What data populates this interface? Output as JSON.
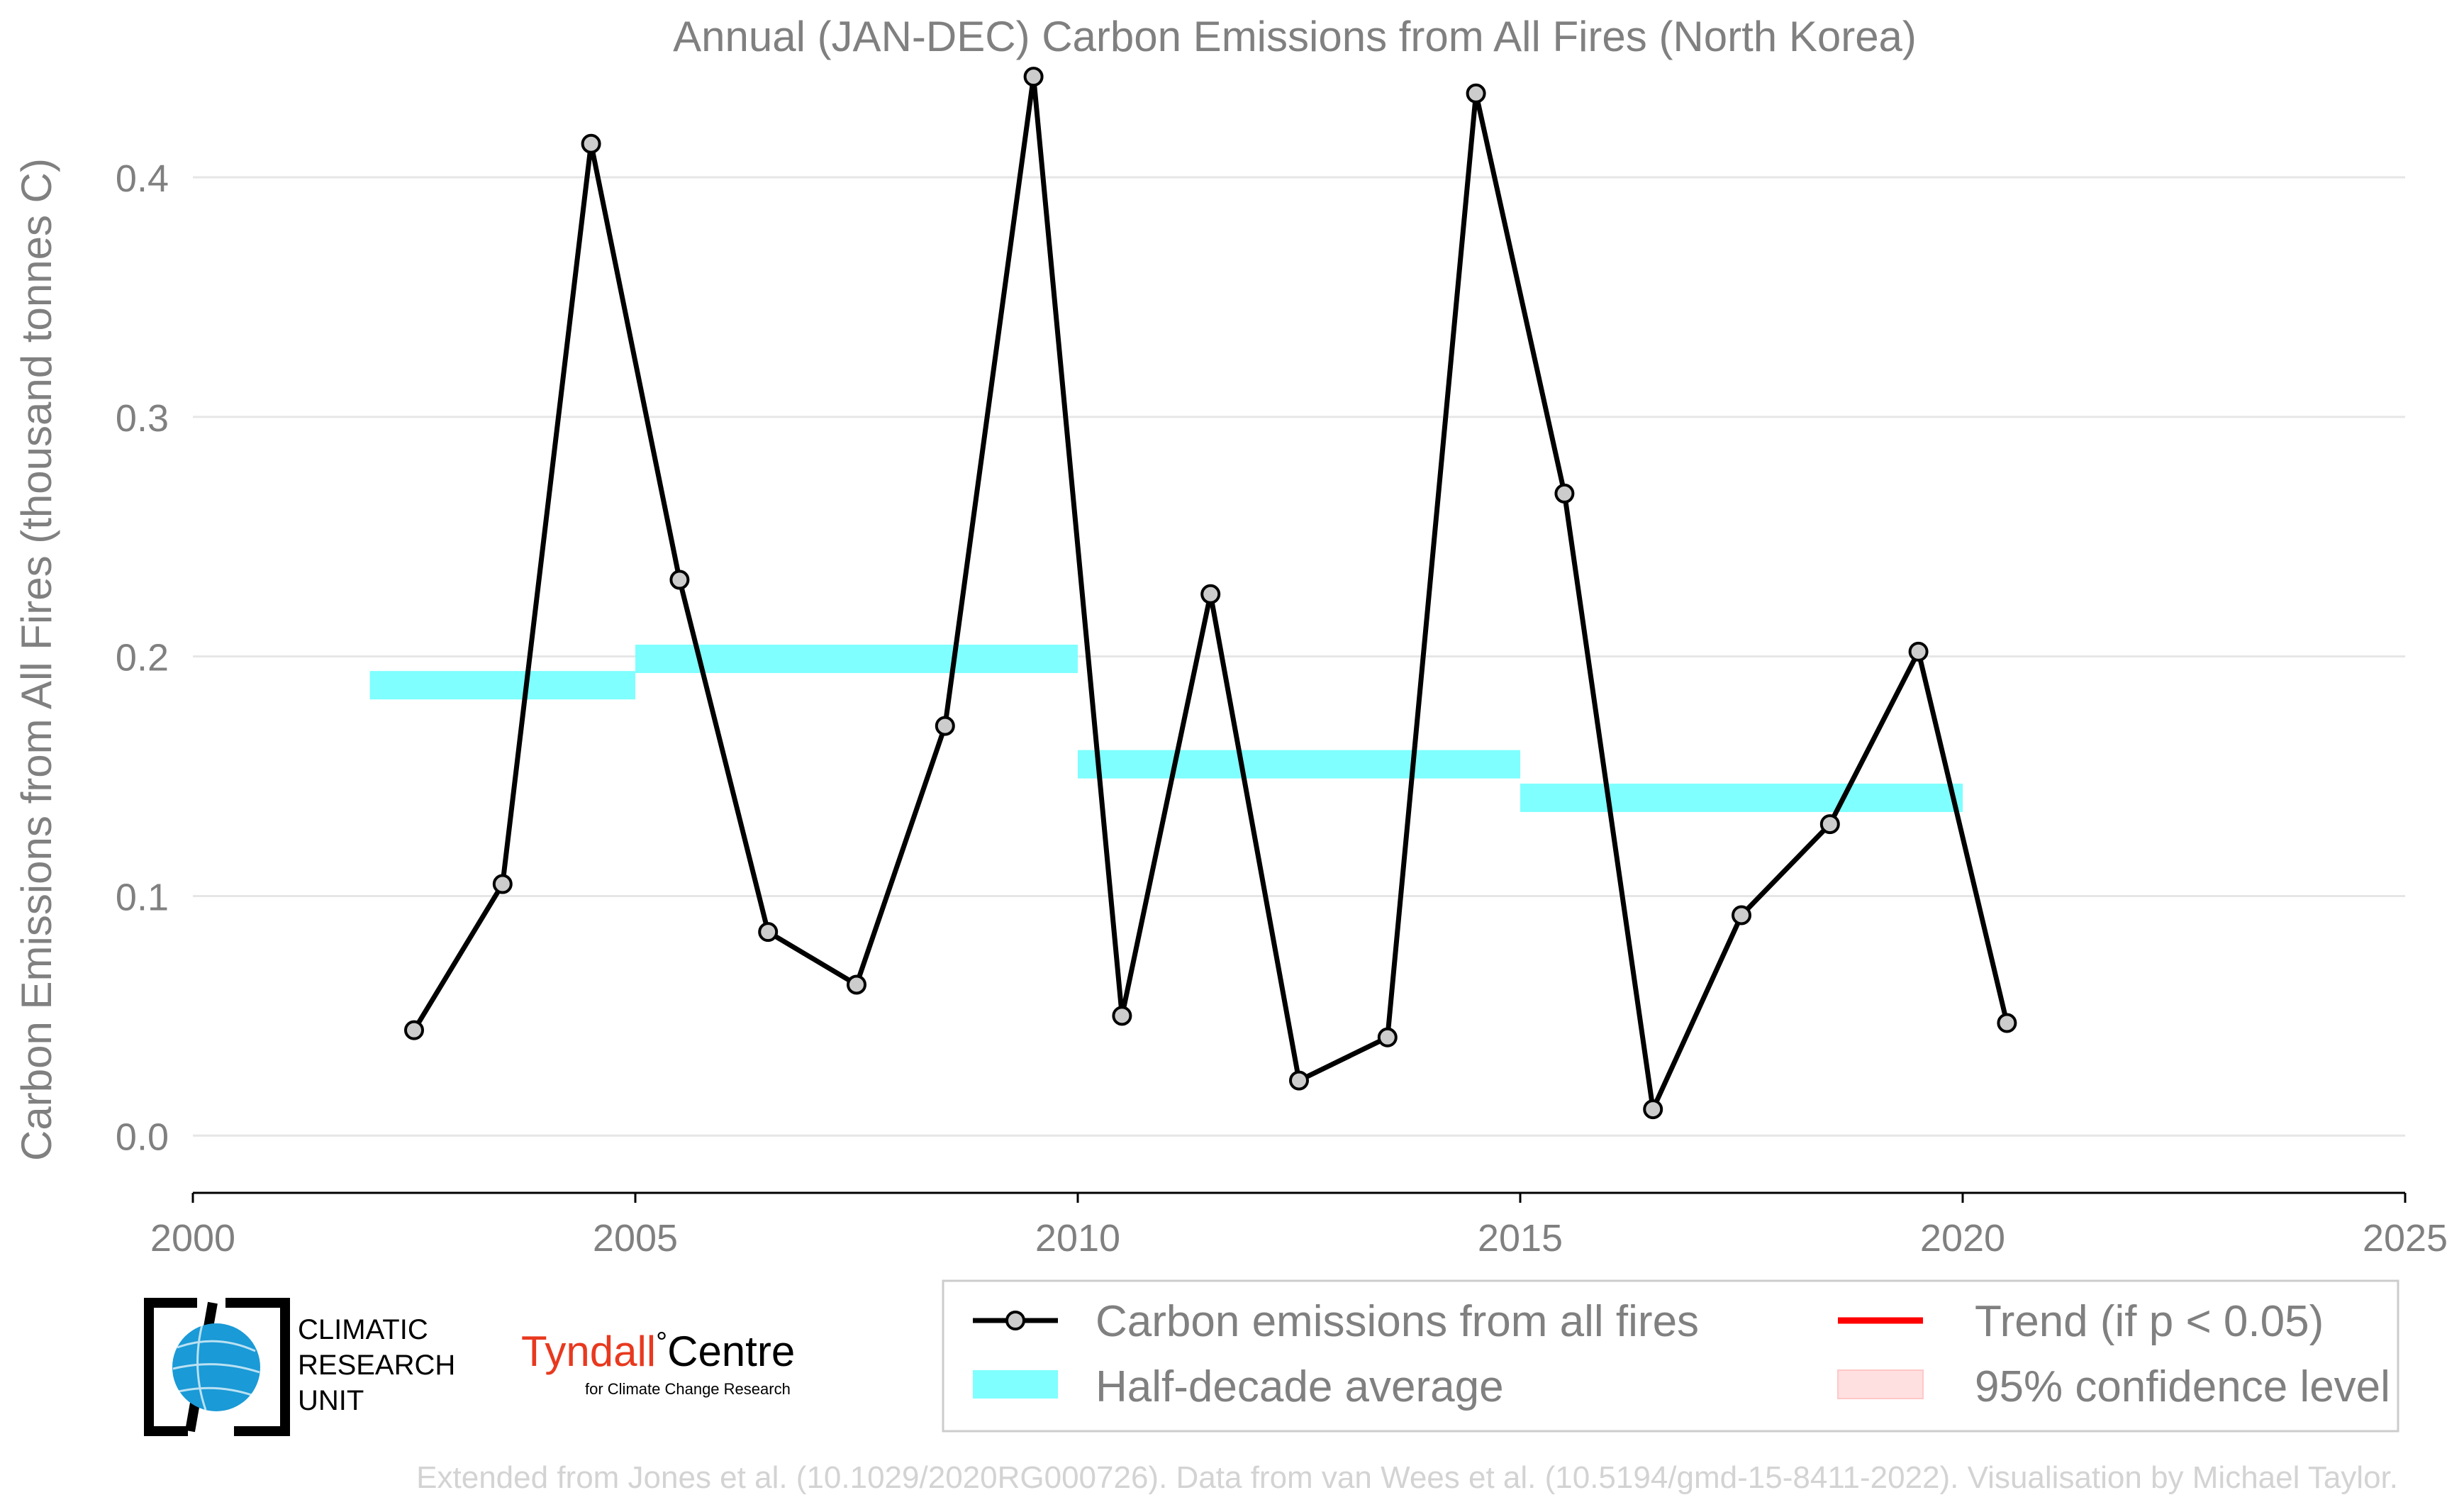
{
  "chart_data": {
    "type": "line",
    "title": "Annual (JAN-DEC) Carbon Emissions from All Fires (North Korea)",
    "xlabel": "",
    "ylabel": "Carbon Emissions from All Fires (thousand tonnes C)",
    "xlim": [
      2000,
      2025
    ],
    "ylim": [
      -0.0239,
      0.445
    ],
    "xticks": [
      2000,
      2005,
      2010,
      2015,
      2020,
      2025
    ],
    "xtick_labels": [
      "2000",
      "2005",
      "2010",
      "2015",
      "2020",
      "2025"
    ],
    "yticks": [
      0.0,
      0.1,
      0.2,
      0.3,
      0.4
    ],
    "ytick_labels": [
      "0.0",
      "0.1",
      "0.2",
      "0.3",
      "0.4"
    ],
    "grid": "horizontal",
    "series": [
      {
        "name": "Carbon emissions from all fires",
        "color": "#000000",
        "x": [
          2002.5,
          2003.5,
          2004.5,
          2005.5,
          2006.5,
          2007.5,
          2008.5,
          2009.5,
          2010.5,
          2011.5,
          2012.5,
          2013.5,
          2014.5,
          2015.5,
          2016.5,
          2017.5,
          2018.5,
          2019.5,
          2020.5
        ],
        "values": [
          0.044,
          0.105,
          0.414,
          0.232,
          0.085,
          0.063,
          0.171,
          0.442,
          0.05,
          0.226,
          0.023,
          0.041,
          0.435,
          0.268,
          0.011,
          0.092,
          0.13,
          0.202,
          0.047
        ]
      }
    ],
    "half_decade_average": {
      "name": "Half-decade average",
      "color": "#7fffff",
      "segments": [
        {
          "x_start": 2002,
          "x_end": 2005,
          "value": 0.188
        },
        {
          "x_start": 2005,
          "x_end": 2010,
          "value": 0.199
        },
        {
          "x_start": 2010,
          "x_end": 2015,
          "value": 0.155
        },
        {
          "x_start": 2015,
          "x_end": 2020,
          "value": 0.141
        }
      ]
    },
    "legend": {
      "placement": "bottom-right",
      "entries": [
        {
          "label": "Carbon emissions from all fires",
          "symbol": "line-marker",
          "color": "#000000"
        },
        {
          "label": "Trend (if p < 0.05)",
          "symbol": "line",
          "color": "#ff0000"
        },
        {
          "label": "Half-decade average",
          "symbol": "patch",
          "color": "#7fffff"
        },
        {
          "label": "95% confidence level",
          "symbol": "patch",
          "color": "#ffe0e0"
        }
      ]
    }
  },
  "logos": {
    "cru_lines": [
      "CLIMATIC",
      "RESEARCH",
      "UNIT"
    ],
    "tyndall_name": "Tyndall",
    "tyndall_degree": "°",
    "tyndall_centre": "Centre",
    "tyndall_tagline": "for Climate Change Research"
  },
  "credit": "Extended from Jones et al. (10.1029/2020RG000726). Data from van Wees et al. (10.5194/gmd-15-8411-2022). Visualisation by Michael Taylor.",
  "colors": {
    "text": "#808080",
    "grid": "#e6e6e6",
    "marker_fill": "#cccccc",
    "tyndall_red": "#e8391f",
    "cru_blue": "#1a9ad6"
  }
}
